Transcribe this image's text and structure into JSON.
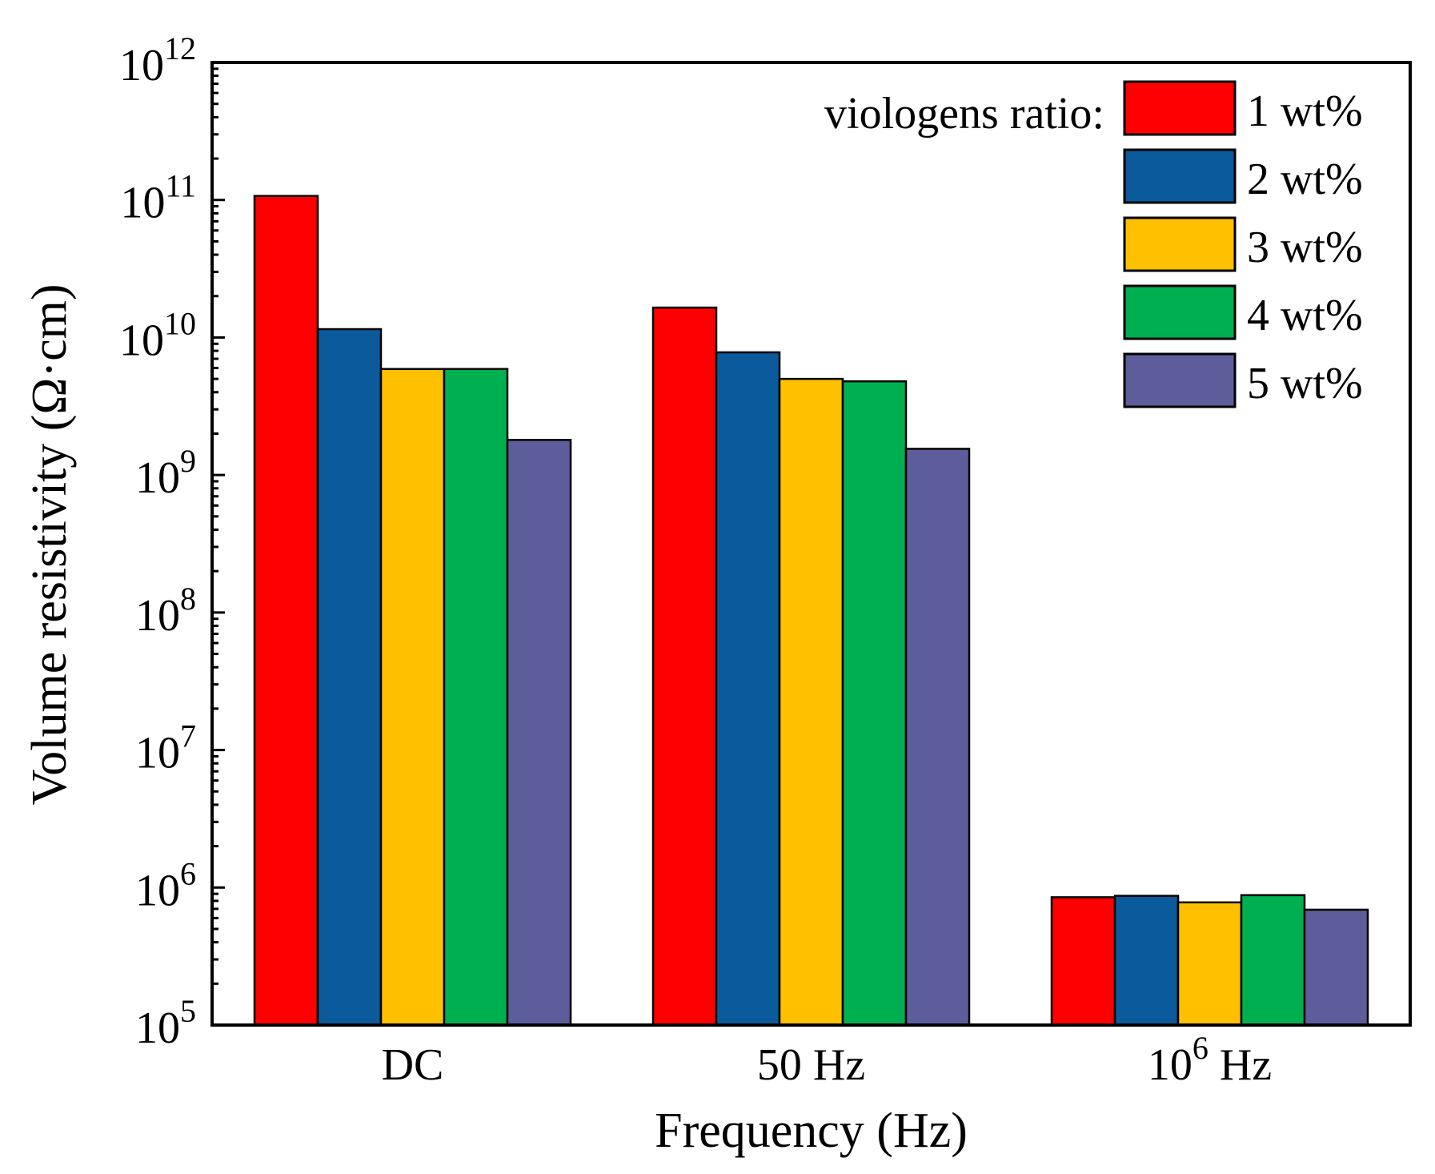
{
  "chart_data": {
    "type": "bar",
    "title": "",
    "xlabel": "Frequency (Hz)",
    "ylabel": "Volume resistivity (Ω·cm)",
    "yscale": "log",
    "ylim": [
      100000,
      1000000000000
    ],
    "ytick_exponents": [
      "5",
      "6",
      "7",
      "8",
      "9",
      "10",
      "11",
      "12"
    ],
    "ytick_base": "10",
    "categories": [
      {
        "base": "DC",
        "sup": "",
        "suffix": ""
      },
      {
        "base": "50 Hz",
        "sup": "",
        "suffix": ""
      },
      {
        "base": "10",
        "sup": "6",
        "suffix": " Hz"
      }
    ],
    "legend_title": "viologens ratio:",
    "legend_position": "top-right",
    "series": [
      {
        "name": "1 wt%",
        "color": "#ff0000",
        "values": [
          107000000000,
          16500000000,
          850000
        ]
      },
      {
        "name": "2 wt%",
        "color": "#0a5a9c",
        "values": [
          11500000000,
          7800000000,
          870000
        ]
      },
      {
        "name": "3 wt%",
        "color": "#ffc000",
        "values": [
          5900000000,
          5000000000,
          780000
        ]
      },
      {
        "name": "4 wt%",
        "color": "#00b050",
        "values": [
          5900000000,
          4800000000,
          880000
        ]
      },
      {
        "name": "5 wt%",
        "color": "#5e5d9b",
        "values": [
          1800000000,
          1550000000,
          690000
        ]
      }
    ]
  }
}
